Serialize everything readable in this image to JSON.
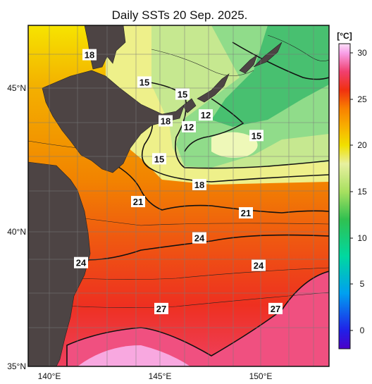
{
  "title": "Daily SSTs 20 Sep. 2025.",
  "lat_labels": [
    "45°N",
    "40°N",
    "35°N"
  ],
  "lon_labels": [
    "140°E",
    "145°E",
    "150°E"
  ],
  "colorbar": {
    "unit": "[°C]",
    "ticks": [
      "30",
      "25",
      "20",
      "15",
      "10",
      "5",
      "0"
    ],
    "stops": [
      {
        "value": -2,
        "color": "#4a00c8"
      },
      {
        "value": 0,
        "color": "#2020e8"
      },
      {
        "value": 4,
        "color": "#00a0f0"
      },
      {
        "value": 8,
        "color": "#00d8a0"
      },
      {
        "value": 12,
        "color": "#30c050"
      },
      {
        "value": 15,
        "color": "#a8e060"
      },
      {
        "value": 18,
        "color": "#e8f0a0"
      },
      {
        "value": 20,
        "color": "#f0e000"
      },
      {
        "value": 22,
        "color": "#f8b000"
      },
      {
        "value": 24,
        "color": "#f88000"
      },
      {
        "value": 26,
        "color": "#f03010"
      },
      {
        "value": 28,
        "color": "#f04070"
      },
      {
        "value": 30,
        "color": "#f8a0e8"
      },
      {
        "value": 31,
        "color": "#fce0f8"
      }
    ]
  },
  "contour_labels": [
    {
      "text": "18",
      "lon": 141.9,
      "lat": 46.1
    },
    {
      "text": "15",
      "lon": 144.5,
      "lat": 45.2
    },
    {
      "text": "15",
      "lon": 146.3,
      "lat": 44.8
    },
    {
      "text": "18",
      "lon": 145.5,
      "lat": 43.9
    },
    {
      "text": "12",
      "lon": 147.4,
      "lat": 44.1
    },
    {
      "text": "12",
      "lon": 146.6,
      "lat": 43.7
    },
    {
      "text": "15",
      "lon": 149.8,
      "lat": 43.4
    },
    {
      "text": "15",
      "lon": 145.2,
      "lat": 42.6
    },
    {
      "text": "18",
      "lon": 147.1,
      "lat": 41.7
    },
    {
      "text": "21",
      "lon": 144.2,
      "lat": 41.1
    },
    {
      "text": "21",
      "lon": 149.3,
      "lat": 40.7
    },
    {
      "text": "24",
      "lon": 147.1,
      "lat": 39.8
    },
    {
      "text": "24",
      "lon": 141.5,
      "lat": 38.9
    },
    {
      "text": "24",
      "lon": 149.9,
      "lat": 38.8
    },
    {
      "text": "27",
      "lon": 145.3,
      "lat": 37.2
    },
    {
      "text": "27",
      "lon": 150.7,
      "lat": 37.2
    }
  ]
}
